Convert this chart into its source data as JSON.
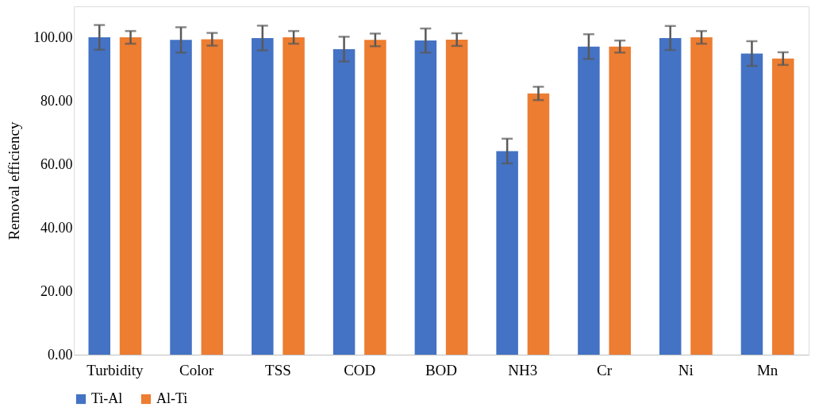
{
  "chart_data": {
    "type": "bar",
    "ylabel": "Removal efficiency",
    "categories": [
      "Turbidity",
      "Color",
      "TSS",
      "COD",
      "BOD",
      "NH3",
      "Cr",
      "Ni",
      "Mn"
    ],
    "series": [
      {
        "name": "Ti-Al",
        "color": "#4472c4",
        "values": [
          100.2,
          99.4,
          100.0,
          96.5,
          99.2,
          64.3,
          97.3,
          100.0,
          95.1
        ],
        "errors": [
          3.9,
          4.0,
          3.9,
          3.9,
          3.8,
          3.9,
          3.9,
          3.8,
          3.9
        ]
      },
      {
        "name": "Al-Ti",
        "color": "#ed7d31",
        "values": [
          100.2,
          99.6,
          100.2,
          99.4,
          99.5,
          82.5,
          97.3,
          100.2,
          93.5
        ],
        "errors": [
          2.0,
          2.0,
          2.0,
          2.0,
          2.0,
          2.1,
          1.9,
          2.0,
          2.0
        ]
      }
    ],
    "ylim": [
      0,
      110
    ],
    "yticks": [
      {
        "value": 0,
        "label": "0.00"
      },
      {
        "value": 20,
        "label": "20.00"
      },
      {
        "value": 40,
        "label": "40.00"
      },
      {
        "value": 60,
        "label": "60.00"
      },
      {
        "value": 80,
        "label": "80.00"
      },
      {
        "value": 100,
        "label": "100.00"
      }
    ],
    "grid": false,
    "legend": "bottom"
  }
}
